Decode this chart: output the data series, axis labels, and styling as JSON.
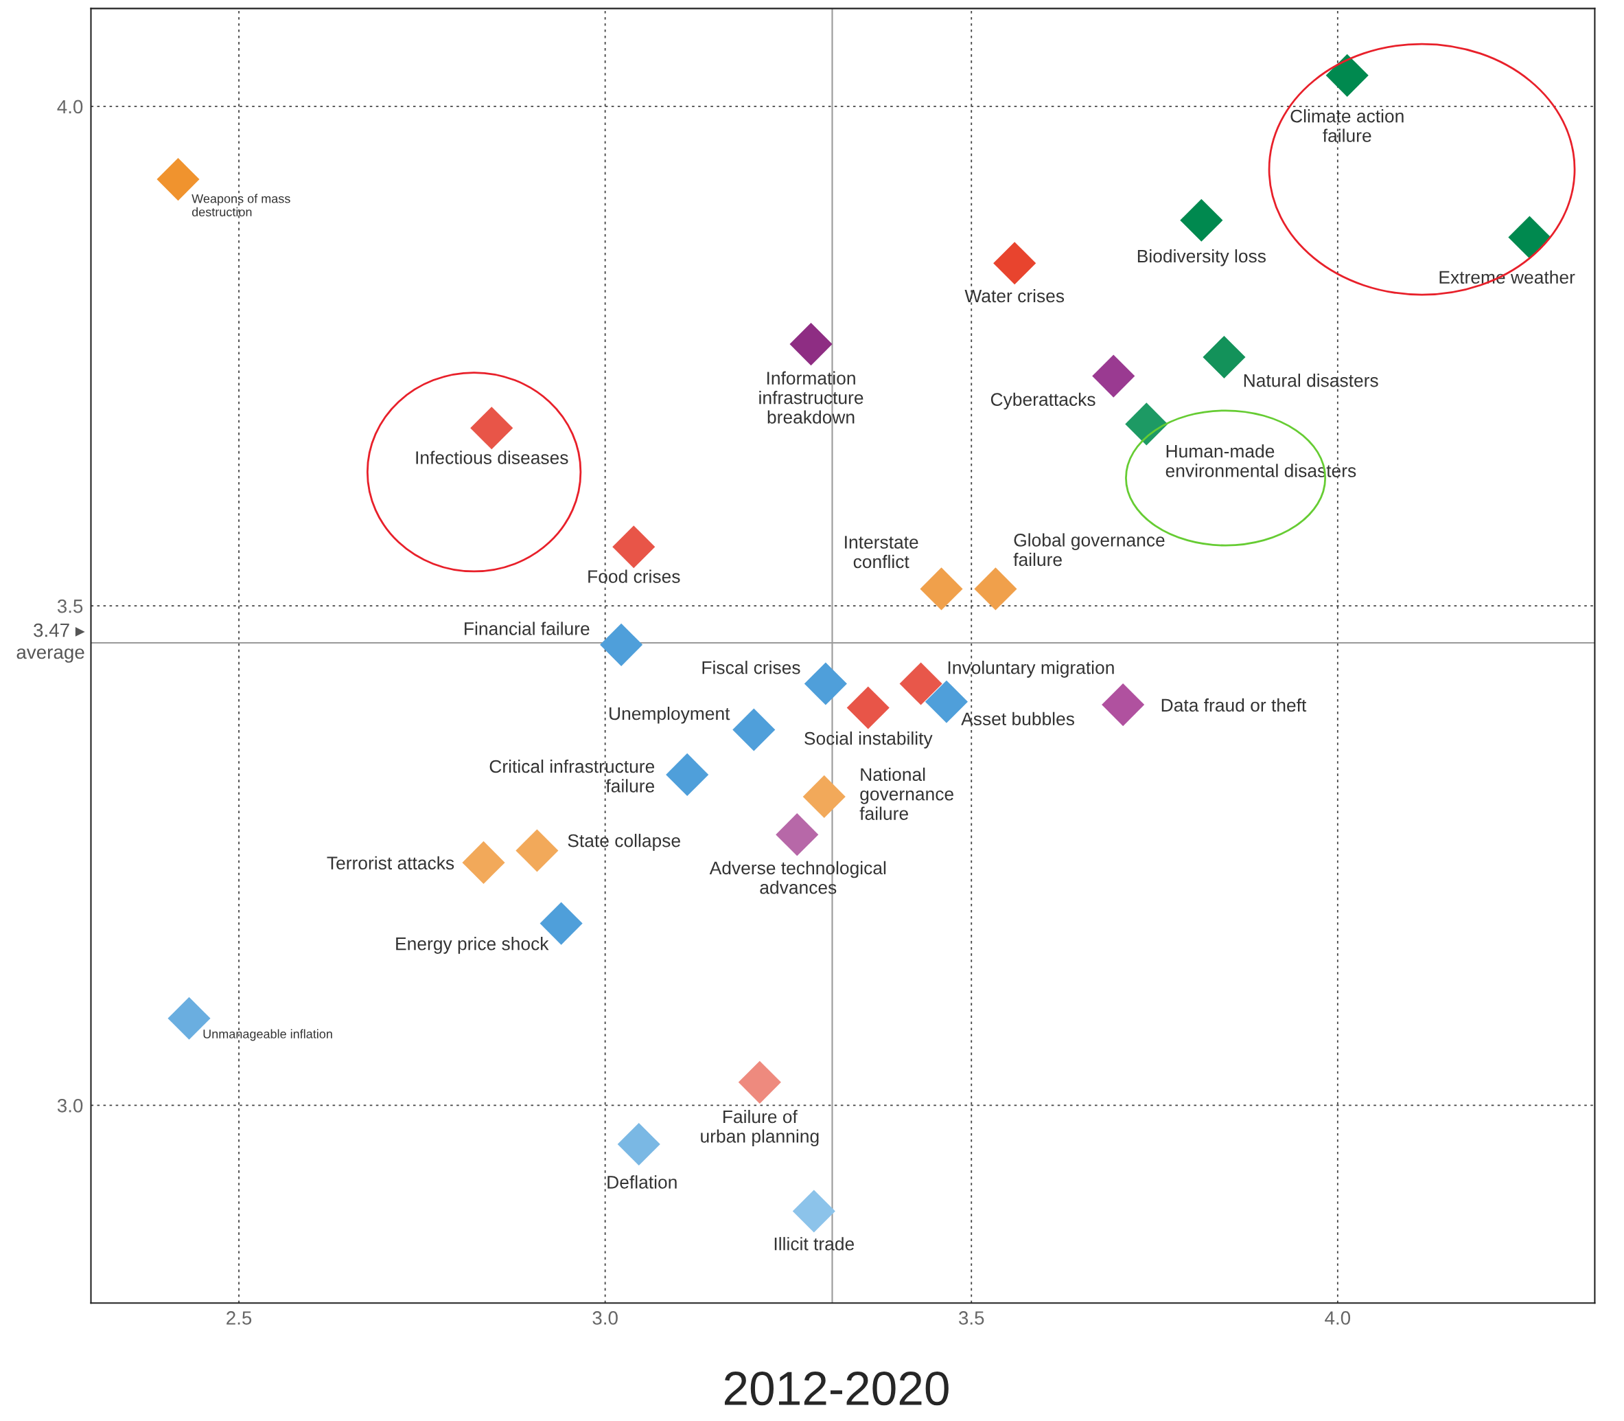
{
  "chart_data": {
    "type": "scatter",
    "title": "2012-2020",
    "x": [
      4.013,
      4.262,
      3.814,
      3.559,
      3.845,
      3.694,
      3.739,
      3.281,
      2.845,
      2.417,
      3.039,
      3.459,
      3.533,
      3.022,
      3.301,
      3.431,
      3.359,
      3.466,
      3.707,
      3.203,
      3.112,
      3.299,
      3.262,
      2.907,
      2.834,
      2.94,
      2.432,
      3.211,
      3.046,
      3.285
    ],
    "values": [
      4.031,
      3.869,
      3.886,
      3.843,
      3.749,
      3.73,
      3.682,
      3.762,
      3.678,
      3.927,
      3.559,
      3.517,
      3.517,
      3.461,
      3.422,
      3.422,
      3.398,
      3.404,
      3.401,
      3.376,
      3.331,
      3.309,
      3.271,
      3.255,
      3.243,
      3.182,
      3.087,
      3.023,
      2.961,
      2.894
    ],
    "colors": [
      "#00894f",
      "#00894f",
      "#00894f",
      "#e8442e",
      "#13925a",
      "#9a3a91",
      "#1d9a64",
      "#8e2d83",
      "#e85548",
      "#f0932e",
      "#e85548",
      "#f0a04b",
      "#f0a04b",
      "#4f9fda",
      "#4f9fda",
      "#e8574a",
      "#e85548",
      "#4f9fda",
      "#b0519f",
      "#4f9fda",
      "#4f9fda",
      "#f2a95a",
      "#b768a8",
      "#f2a95a",
      "#f2a95a",
      "#4f9fda",
      "#6aaee0",
      "#ee8a7e",
      "#7ab8e4",
      "#8cc3ea"
    ],
    "annotations": [
      {
        "text": "Climate action\nfailure",
        "x": 4.013,
        "y": 4.031
      },
      {
        "text": "Extreme weather",
        "x": 4.262,
        "y": 3.869
      },
      {
        "text": "Biodiversity loss",
        "x": 3.814,
        "y": 3.886
      },
      {
        "text": "Water crises",
        "x": 3.559,
        "y": 3.843
      },
      {
        "text": "Natural disasters",
        "x": 3.845,
        "y": 3.749
      },
      {
        "text": "Cyberattacks",
        "x": 3.694,
        "y": 3.73
      },
      {
        "text": "Human-made\nenvironmental disasters",
        "x": 3.739,
        "y": 3.682
      },
      {
        "text": "Information\ninfrastructure\nbreakdown",
        "x": 3.281,
        "y": 3.762
      },
      {
        "text": "Infectious diseases",
        "x": 2.845,
        "y": 3.678
      },
      {
        "text": "Weapons of mass\ndestruction",
        "x": 2.417,
        "y": 3.927
      },
      {
        "text": "Food crises",
        "x": 3.039,
        "y": 3.559
      },
      {
        "text": "Interstate\nconflict",
        "x": 3.459,
        "y": 3.517
      },
      {
        "text": "Global governance\nfailure",
        "x": 3.533,
        "y": 3.517
      },
      {
        "text": "Financial failure",
        "x": 3.022,
        "y": 3.461
      },
      {
        "text": "Fiscal crises",
        "x": 3.301,
        "y": 3.422
      },
      {
        "text": "Involuntary migration",
        "x": 3.431,
        "y": 3.422
      },
      {
        "text": "Social instability",
        "x": 3.359,
        "y": 3.398
      },
      {
        "text": "Asset bubbles",
        "x": 3.466,
        "y": 3.404
      },
      {
        "text": "Data fraud or theft",
        "x": 3.707,
        "y": 3.401
      },
      {
        "text": "Unemployment",
        "x": 3.203,
        "y": 3.376
      },
      {
        "text": "Critical infrastructure\nfailure",
        "x": 3.112,
        "y": 3.331
      },
      {
        "text": "National\ngovernance\nfailure",
        "x": 3.299,
        "y": 3.309
      },
      {
        "text": "Adverse technological\nadvances",
        "x": 3.262,
        "y": 3.271
      },
      {
        "text": "State collapse",
        "x": 2.907,
        "y": 3.255
      },
      {
        "text": "Terrorist attacks",
        "x": 2.834,
        "y": 3.243
      },
      {
        "text": "Energy price shock",
        "x": 2.94,
        "y": 3.182
      },
      {
        "text": "Unmanageable inflation",
        "x": 2.432,
        "y": 3.087
      },
      {
        "text": "Failure of\nurban planning",
        "x": 3.211,
        "y": 3.023
      },
      {
        "text": "Deflation",
        "x": 3.046,
        "y": 2.961
      },
      {
        "text": "Illicit trade",
        "x": 3.285,
        "y": 2.894
      }
    ],
    "xlim": [
      2.298,
      4.351
    ],
    "ylim": [
      2.802,
      4.098
    ],
    "xticks": [
      2.5,
      {
        "value": 3,
        "label": "3.0"
      },
      3.5,
      {
        "value": 4,
        "label": "4.0"
      }
    ],
    "yticks": [
      {
        "value": 3,
        "label": "3.0"
      },
      3.5,
      {
        "value": 4,
        "label": "4.0"
      }
    ],
    "ref_lines": [
      {
        "axis": "y",
        "value": 3.463,
        "label": "3.47 ▸\naverage",
        "color": "#999999"
      },
      {
        "axis": "x",
        "value": 3.31,
        "label": null,
        "color": "#999999"
      }
    ],
    "grid": true,
    "marker": "diamond",
    "legend": false
  }
}
